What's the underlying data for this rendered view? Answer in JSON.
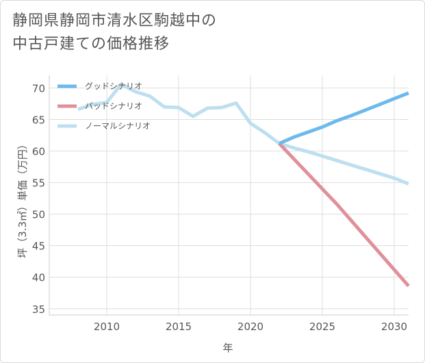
{
  "title_lines": [
    "静岡県静岡市清水区駒越中の",
    "中古戸建ての価格推移"
  ],
  "chart_data": {
    "type": "line",
    "xlabel": "年",
    "ylabel": "坪（3.3㎡）単価（万円）",
    "xlim": [
      2006,
      2031
    ],
    "ylim": [
      34,
      72
    ],
    "xticks": [
      2010,
      2015,
      2020,
      2025,
      2030
    ],
    "yticks": [
      35,
      40,
      45,
      50,
      55,
      60,
      65,
      70
    ],
    "grid": true,
    "legend_position": "top-left",
    "series": [
      {
        "name": "グッドシナリオ",
        "color": "#6cbaec",
        "points": [
          [
            2022,
            61.2
          ],
          [
            2023,
            62.2
          ],
          [
            2024,
            63.0
          ],
          [
            2025,
            63.8
          ],
          [
            2026,
            64.8
          ],
          [
            2027,
            65.6
          ],
          [
            2028,
            66.5
          ],
          [
            2029,
            67.4
          ],
          [
            2030,
            68.3
          ],
          [
            2031,
            69.2
          ]
        ]
      },
      {
        "name": "バッドシナリオ",
        "color": "#e0909a",
        "points": [
          [
            2022,
            61.2
          ],
          [
            2023,
            58.8
          ],
          [
            2024,
            56.4
          ],
          [
            2025,
            54.0
          ],
          [
            2026,
            51.6
          ],
          [
            2027,
            49.0
          ],
          [
            2028,
            46.4
          ],
          [
            2029,
            43.8
          ],
          [
            2030,
            41.2
          ],
          [
            2031,
            38.6
          ]
        ]
      },
      {
        "name": "ノーマルシナリオ",
        "color": "#bedfef",
        "points": [
          [
            2008,
            66.6
          ],
          [
            2009,
            67.4
          ],
          [
            2010,
            67.7
          ],
          [
            2011,
            70.6
          ],
          [
            2012,
            69.4
          ],
          [
            2013,
            68.7
          ],
          [
            2014,
            67.0
          ],
          [
            2015,
            66.9
          ],
          [
            2016,
            65.5
          ],
          [
            2017,
            66.8
          ],
          [
            2018,
            66.9
          ],
          [
            2019,
            67.6
          ],
          [
            2020,
            64.4
          ],
          [
            2021,
            62.9
          ],
          [
            2022,
            61.2
          ],
          [
            2023,
            60.5
          ],
          [
            2024,
            59.9
          ],
          [
            2025,
            59.2
          ],
          [
            2026,
            58.5
          ],
          [
            2027,
            57.8
          ],
          [
            2028,
            57.1
          ],
          [
            2029,
            56.4
          ],
          [
            2030,
            55.7
          ],
          [
            2031,
            54.8
          ]
        ]
      }
    ]
  }
}
